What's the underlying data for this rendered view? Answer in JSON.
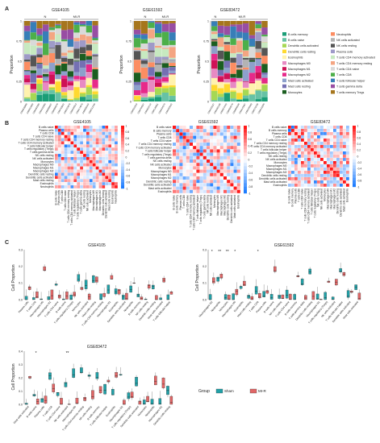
{
  "panels": {
    "A": {
      "label": "A",
      "ylabel": "Proportion",
      "yticks": [
        "0",
        "0.25",
        "0.5",
        "0.75",
        "1"
      ],
      "charts": [
        {
          "title": "GSE4105",
          "groups": [
            "N",
            "MI-R"
          ]
        },
        {
          "title": "GSE61592",
          "groups": [
            "N",
            "MI-R"
          ]
        },
        {
          "title": "GSE83472",
          "groups": [
            "N",
            "MI-R"
          ]
        }
      ],
      "legend": [
        {
          "label": "B cells memory",
          "color": "#1a9e77"
        },
        {
          "label": "B cells naive",
          "color": "#66c2a5"
        },
        {
          "label": "Dendritic cells activated",
          "color": "#a6d854"
        },
        {
          "label": "Dendritic cells resting",
          "color": "#ffd92f"
        },
        {
          "label": "Eosinophils",
          "color": "#fff2ae"
        },
        {
          "label": "Macrophages M0",
          "color": "#e78ac3"
        },
        {
          "label": "Macrophages M1",
          "color": "#ce1256"
        },
        {
          "label": "Macrophages M2",
          "color": "#e7298a"
        },
        {
          "label": "Mast cells activated",
          "color": "#8da0cb"
        },
        {
          "label": "Mast cells resting",
          "color": "#7570b3"
        },
        {
          "label": "Monocytes",
          "color": "#1b5e20"
        },
        {
          "label": "Neutrophils",
          "color": "#fc8d62"
        },
        {
          "label": "NK cells activated",
          "color": "#b3b3b3"
        },
        {
          "label": "NK cells resting",
          "color": "#555555"
        },
        {
          "label": "Plasma cells",
          "color": "#9e9ac8"
        },
        {
          "label": "T cells CD4 memory activated",
          "color": "#c7e9c0"
        },
        {
          "label": "T cells CD4 memory resting",
          "color": "#f4a582"
        },
        {
          "label": "T cells CD4 naive",
          "color": "#d9d9d9"
        },
        {
          "label": "T cells CD8",
          "color": "#4daf4a"
        },
        {
          "label": "T cells follicular helper",
          "color": "#377eb8"
        },
        {
          "label": "T cells gamma delta",
          "color": "#984ea3"
        },
        {
          "label": "T cells memory Tregs",
          "color": "#a6761d"
        }
      ]
    },
    "B": {
      "label": "B",
      "charts": [
        {
          "title": "GSE4105",
          "rows": [
            "B cells naive",
            "Plasma cells",
            "T cells CD8",
            "T cells CD4 naive",
            "T cells CD4 memory resting",
            "T cells CD4 memory activated",
            "T cells follicular helper",
            "T cells regulatory (Tregs)",
            "T cells gamma delta",
            "NK cells resting",
            "NK cells activated",
            "Monocytes",
            "Macrophages M0",
            "Macrophages M1",
            "Macrophages M2",
            "Dendritic cells resting",
            "Dendritic cells activated",
            "Mast cells resting",
            "Eosinophils",
            "Neutrophils"
          ],
          "scale": [
            "1",
            "0.8",
            "0.6",
            "0.4",
            "0.2",
            "0",
            "-0.2",
            "-0.4",
            "-0.6",
            "-0.8",
            "-1"
          ]
        },
        {
          "title": "GSE61592",
          "rows": [
            "B cells naive",
            "B cells memory",
            "Plasma cells",
            "T cells CD8",
            "T cells CD4 naive",
            "T cells CD4 memory resting",
            "T cells CD4 memory activated",
            "T cells follicular helper",
            "T cells regulatory (Tregs)",
            "T cells gamma delta",
            "NK cells resting",
            "NK cells activated",
            "Monocytes",
            "Macrophages M0",
            "Macrophages M1",
            "Macrophages M2",
            "Dendritic cells resting",
            "Dendritic cells activated",
            "Mast cells activated",
            "Eosinophils"
          ],
          "scale": [
            "1",
            "0.8",
            "0.6",
            "0.4",
            "0.2",
            "0",
            "-0.2",
            "-0.4",
            "-0.6",
            "-0.8",
            "-1"
          ]
        },
        {
          "title": "GSE83472",
          "rows": [
            "B cells naive",
            "B cells memory",
            "Plasma cells",
            "T cells CD8",
            "T cells CD4 naive",
            "T cells CD4 memory resting",
            "T cells CD4 memory activated",
            "T cells follicular helper",
            "T cells regulatory (Tregs)",
            "NK cells resting",
            "NK cells activated",
            "Monocytes",
            "Macrophages M0",
            "Macrophages M1",
            "Macrophages M2",
            "Dendritic cells resting",
            "Dendritic cells activated",
            "Mast cells activated",
            "Eosinophils"
          ],
          "scale": [
            "1",
            "0.8",
            "0.6",
            "0.4",
            "0.2",
            "0",
            "-0.2",
            "-0.4",
            "-0.6",
            "-0.8",
            "-1"
          ]
        }
      ]
    },
    "C": {
      "label": "C",
      "ylabel": "Cell Proportion",
      "charts": [
        {
          "title": "GSE4105",
          "yticks": [
            "0.0",
            "0.1",
            "0.2",
            "0.3"
          ]
        },
        {
          "title": "GSE61592",
          "yticks": [
            "0.0",
            "0.1",
            "0.2",
            "0.3"
          ],
          "stars": [
            "*",
            "**",
            "**",
            "*",
            "*"
          ]
        },
        {
          "title": "GSE83472",
          "yticks": [
            "0.0",
            "0.1",
            "0.2",
            "0.3",
            "0.4"
          ],
          "stars": [
            "*",
            "**"
          ]
        }
      ],
      "legend": {
        "title": "Group",
        "items": [
          {
            "label": "Sham",
            "color": "#21a1a8"
          },
          {
            "label": "MI-R",
            "color": "#e06666"
          }
        ]
      }
    }
  }
}
